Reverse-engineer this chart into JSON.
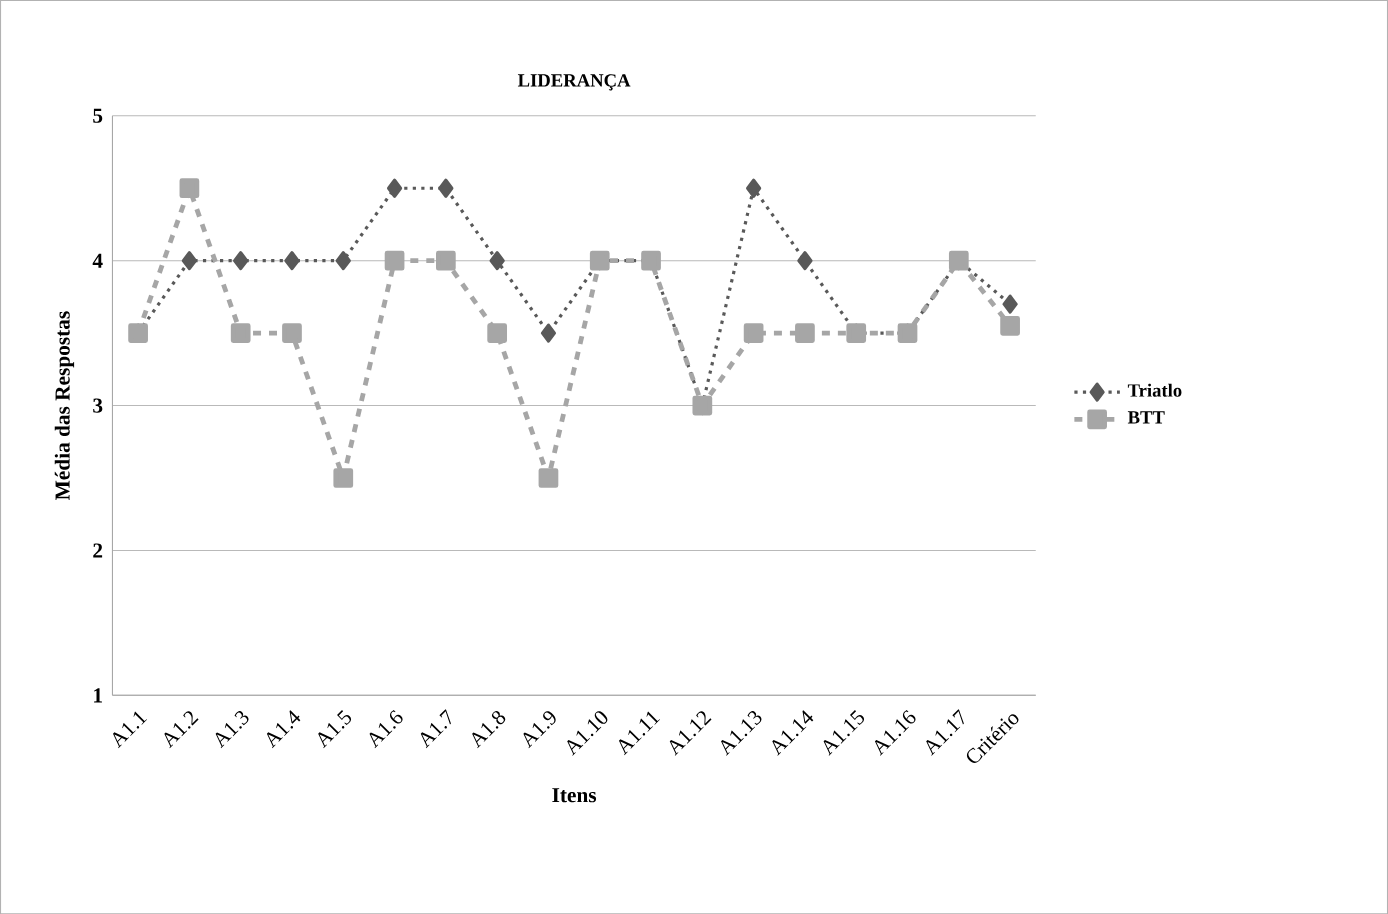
{
  "chart_data": {
    "type": "line",
    "title": "LIDERANÇA",
    "xlabel": "Itens",
    "ylabel": "Média das Respostas",
    "categories": [
      "A1.1",
      "A1.2",
      "A1.3",
      "A1.4",
      "A1.5",
      "A1.6",
      "A1.7",
      "A1.8",
      "A1.9",
      "A1.10",
      "A1.11",
      "A1.12",
      "A1.13",
      "A1.14",
      "A1.15",
      "A1.16",
      "A1.17",
      "Critério"
    ],
    "series": [
      {
        "name": "Triatlo",
        "color": "#595959",
        "marker": "diamond",
        "line_style": "dotted",
        "values": [
          3.5,
          4,
          4,
          4,
          4,
          4.5,
          4.5,
          4,
          3.5,
          4,
          4,
          3,
          4.5,
          4,
          3.5,
          3.5,
          4,
          3.7
        ]
      },
      {
        "name": "BTT",
        "color": "#a6a6a6",
        "marker": "square",
        "line_style": "dashed",
        "values": [
          3.5,
          4.5,
          3.5,
          3.5,
          2.5,
          4,
          4,
          3.5,
          2.5,
          4,
          4,
          3,
          3.5,
          3.5,
          3.5,
          3.5,
          4,
          3.55
        ]
      }
    ],
    "ylim": [
      1,
      5
    ],
    "yticks": [
      1,
      2,
      3,
      4,
      5
    ],
    "grid": "y",
    "legend": "right"
  }
}
